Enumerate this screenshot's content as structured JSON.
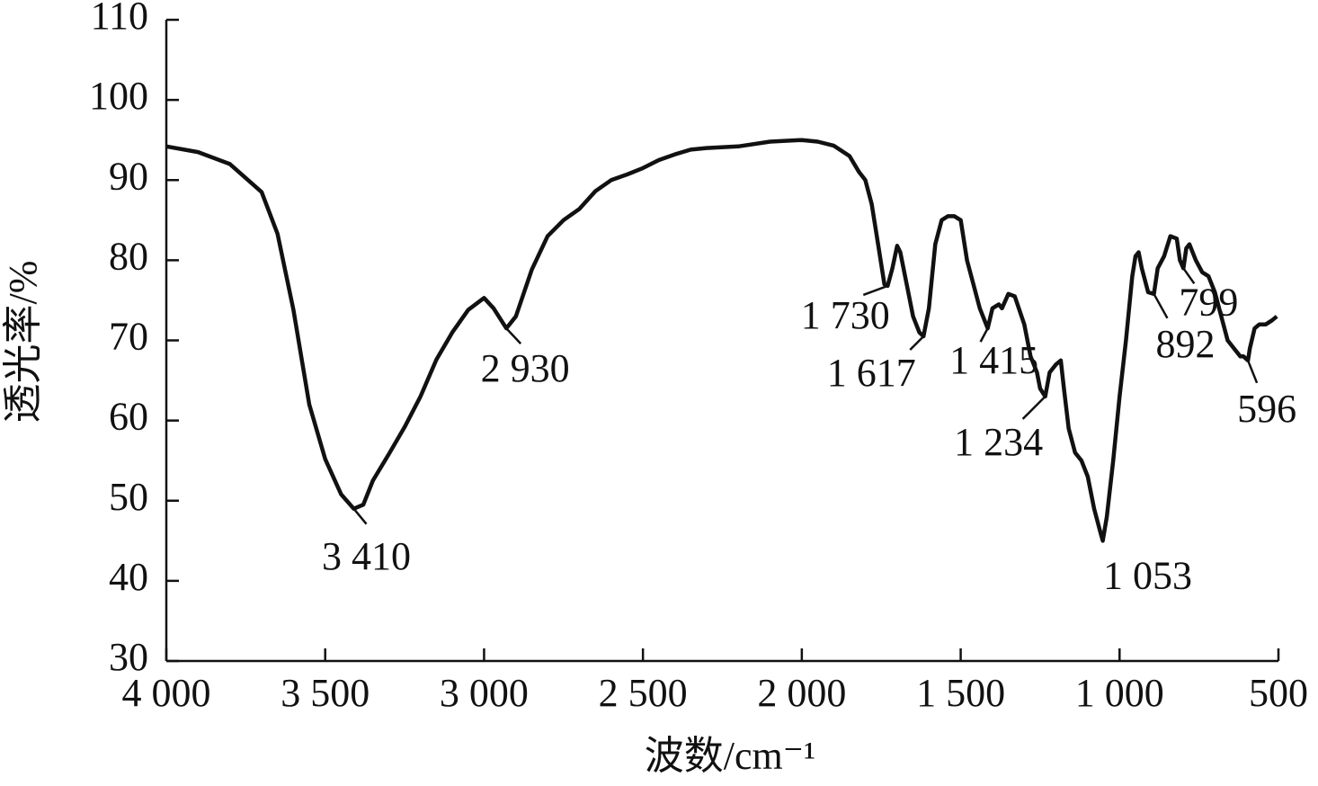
{
  "chart_data": {
    "type": "line",
    "x_label": "波数/cm⁻¹",
    "y_label": "透光率/%",
    "xlim": [
      4000,
      500
    ],
    "xticks": [
      {
        "value": 4000,
        "label": "4 000"
      },
      {
        "value": 3500,
        "label": "3 500"
      },
      {
        "value": 3000,
        "label": "3 000"
      },
      {
        "value": 2500,
        "label": "2 500"
      },
      {
        "value": 2000,
        "label": "2 000"
      },
      {
        "value": 1500,
        "label": "1 500"
      },
      {
        "value": 1000,
        "label": "1 000"
      },
      500
    ],
    "ylim": [
      30,
      110
    ],
    "yticks": [
      30,
      40,
      50,
      60,
      70,
      80,
      90,
      100,
      110
    ],
    "series": [
      {
        "color": "#111111",
        "x": [
          4000,
          3900,
          3800,
          3700,
          3650,
          3600,
          3550,
          3500,
          3450,
          3410,
          3380,
          3350,
          3300,
          3250,
          3200,
          3150,
          3100,
          3050,
          3000,
          2970,
          2930,
          2900,
          2850,
          2800,
          2750,
          2700,
          2650,
          2600,
          2550,
          2500,
          2450,
          2400,
          2350,
          2300,
          2200,
          2100,
          2000,
          1950,
          1900,
          1850,
          1820,
          1800,
          1780,
          1760,
          1740,
          1730,
          1715,
          1700,
          1690,
          1670,
          1650,
          1630,
          1617,
          1600,
          1580,
          1560,
          1540,
          1520,
          1500,
          1480,
          1460,
          1440,
          1415,
          1400,
          1380,
          1370,
          1350,
          1330,
          1300,
          1280,
          1260,
          1250,
          1234,
          1220,
          1200,
          1185,
          1175,
          1160,
          1140,
          1120,
          1100,
          1080,
          1060,
          1053,
          1040,
          1020,
          1000,
          980,
          960,
          950,
          940,
          930,
          910,
          892,
          880,
          860,
          840,
          820,
          810,
          799,
          790,
          780,
          760,
          740,
          720,
          700,
          680,
          660,
          640,
          620,
          610,
          596,
          590,
          575,
          560,
          540,
          520,
          505
        ],
        "values": [
          94.2,
          93.5,
          92,
          88.5,
          83.3,
          73.8,
          62,
          55.2,
          50.8,
          49,
          49.5,
          52.5,
          55.8,
          59.2,
          63,
          67.6,
          71,
          73.8,
          75.3,
          74,
          71.5,
          73,
          78.8,
          83,
          85,
          86.4,
          88.6,
          90,
          90.7,
          91.5,
          92.5,
          93.2,
          93.8,
          94,
          94.2,
          94.8,
          95,
          94.8,
          94.3,
          93,
          91,
          90,
          87,
          82,
          77,
          76.8,
          79,
          81.8,
          81,
          77,
          73,
          71,
          70.5,
          74,
          82,
          85,
          85.5,
          85.5,
          85,
          80,
          77,
          74,
          71.5,
          74,
          74.5,
          74,
          75.8,
          75.5,
          72,
          68,
          66,
          64,
          63,
          66,
          67,
          67.5,
          64,
          59,
          56,
          55,
          53,
          49,
          46,
          45,
          48,
          55,
          63,
          70,
          78,
          80.5,
          81,
          79,
          76,
          75.8,
          79,
          80.5,
          83,
          82.7,
          80,
          79,
          81.5,
          82,
          80,
          78.5,
          78,
          76,
          73,
          70,
          69,
          68,
          68,
          67.5,
          69,
          71.5,
          72,
          72,
          72.5,
          73
        ]
      }
    ],
    "annotations": [
      {
        "text": "3 410",
        "x": 3410,
        "y": 49
      },
      {
        "text": "2 930",
        "x": 2930,
        "y": 71.5
      },
      {
        "text": "1 730",
        "x": 1730,
        "y": 76.8
      },
      {
        "text": "1 617",
        "x": 1617,
        "y": 70.5
      },
      {
        "text": "1 415",
        "x": 1415,
        "y": 71.5
      },
      {
        "text": "1 234",
        "x": 1234,
        "y": 63
      },
      {
        "text": "1 053",
        "x": 1053,
        "y": 45
      },
      {
        "text": "892",
        "x": 892,
        "y": 75.8
      },
      {
        "text": "799",
        "x": 799,
        "y": 79
      },
      {
        "text": "596",
        "x": 596,
        "y": 67.5
      }
    ]
  }
}
